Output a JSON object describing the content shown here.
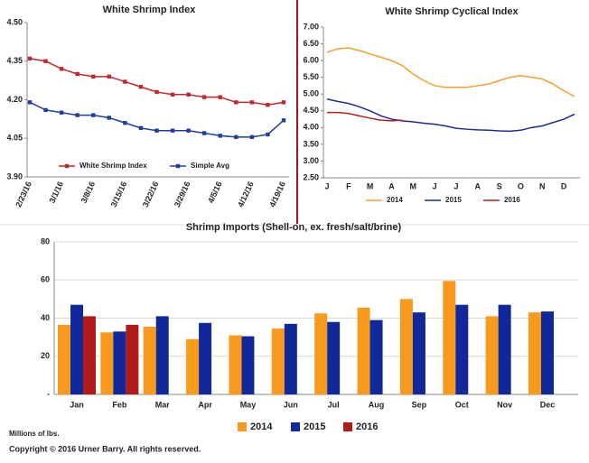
{
  "chart_data": [
    {
      "type": "line",
      "title": "White Shrimp Index",
      "categories": [
        "2/23/16",
        null,
        "3/1/16",
        null,
        "3/8/16",
        null,
        "3/15/16",
        null,
        "3/22/16",
        null,
        "3/29/16",
        null,
        "4/5/16",
        null,
        "4/12/16",
        null,
        "4/19/16"
      ],
      "series": [
        {
          "name": "White Shrimp Index",
          "color": "#c0282d",
          "marker": "square",
          "values": [
            4.36,
            4.35,
            4.32,
            4.3,
            4.29,
            4.29,
            4.27,
            4.25,
            4.23,
            4.22,
            4.22,
            4.21,
            4.21,
            4.19,
            4.19,
            4.18,
            4.19
          ]
        },
        {
          "name": "Simple Avg",
          "color": "#1f3f9a",
          "marker": "square",
          "values": [
            4.19,
            4.16,
            4.15,
            4.14,
            4.14,
            4.13,
            4.11,
            4.09,
            4.08,
            4.08,
            4.08,
            4.07,
            4.06,
            4.055,
            4.055,
            4.065,
            4.12
          ]
        }
      ],
      "ylim": [
        3.9,
        4.5
      ],
      "yticks": [
        {
          "value": 3.9,
          "label": "3.90"
        },
        4.05,
        {
          "value": 4.2,
          "label": "4.20"
        },
        4.35,
        {
          "value": 4.5,
          "label": "4.50"
        }
      ],
      "grid": false,
      "legend": "bottom"
    },
    {
      "type": "line",
      "title": "White Shrimp Cyclical Index",
      "categories": [
        "J",
        null,
        "F",
        null,
        "M",
        null,
        "A",
        null,
        "M",
        null,
        "J",
        null,
        "J",
        null,
        "A",
        null,
        "S",
        null,
        "O",
        null,
        "N",
        null,
        "D",
        null
      ],
      "series": [
        {
          "name": "2014",
          "color": "#f5a030",
          "values": [
            6.25,
            6.35,
            6.38,
            6.3,
            6.2,
            6.1,
            6.0,
            5.85,
            5.6,
            5.4,
            5.25,
            5.2,
            5.2,
            5.2,
            5.25,
            5.3,
            5.4,
            5.5,
            5.55,
            5.5,
            5.45,
            5.3,
            5.1,
            4.93
          ]
        },
        {
          "name": "2015",
          "color": "#1c2e8c",
          "values": [
            4.85,
            4.78,
            4.72,
            4.62,
            4.5,
            4.35,
            4.25,
            4.2,
            4.17,
            4.13,
            4.1,
            4.05,
            3.98,
            3.95,
            3.93,
            3.92,
            3.9,
            3.89,
            3.92,
            4.0,
            4.05,
            4.15,
            4.25,
            4.4
          ]
        },
        {
          "name": "2016",
          "color": "#b22222",
          "values": [
            4.45,
            4.45,
            4.42,
            4.35,
            4.28,
            4.22,
            4.2,
            4.22,
            null,
            null,
            null,
            null,
            null,
            null,
            null,
            null,
            null,
            null,
            null,
            null,
            null,
            null,
            null,
            null
          ]
        }
      ],
      "ylim": [
        2.5,
        7.0
      ],
      "yticks": [
        {
          "value": 2.5,
          "label": "2.50"
        },
        {
          "value": 3.0,
          "label": "3.00"
        },
        {
          "value": 3.5,
          "label": "3.50"
        },
        {
          "value": 4.0,
          "label": "4.00"
        },
        {
          "value": 4.5,
          "label": "4.50"
        },
        {
          "value": 5.0,
          "label": "5.00"
        },
        {
          "value": 5.5,
          "label": "5.50"
        },
        {
          "value": 6.0,
          "label": "6.00"
        },
        {
          "value": 6.5,
          "label": "6.50"
        },
        {
          "value": 7.0,
          "label": "7.00"
        }
      ],
      "grid": false,
      "legend": "bottom"
    },
    {
      "type": "bar",
      "title": "Shrimp Imports (Shell-on, ex. fresh/salt/brine)",
      "categories": [
        "Jan",
        "Feb",
        "Mar",
        "Apr",
        "May",
        "Jun",
        "Jul",
        "Aug",
        "Sep",
        "Oct",
        "Nov",
        "Dec"
      ],
      "series": [
        {
          "name": "2014",
          "color": "#f79a1e",
          "values": [
            36.5,
            32.5,
            35.5,
            29,
            31,
            34.5,
            42.5,
            45.5,
            50,
            59.5,
            41,
            43
          ]
        },
        {
          "name": "2015",
          "color": "#10289a",
          "values": [
            47,
            33,
            41,
            37.5,
            30.5,
            37,
            38,
            39,
            43,
            47,
            47,
            43.5
          ]
        },
        {
          "name": "2016",
          "color": "#b01c1c",
          "values": [
            41,
            36.5,
            null,
            null,
            null,
            null,
            null,
            null,
            null,
            null,
            null,
            null
          ]
        }
      ],
      "ylim": [
        0,
        80
      ],
      "yticks": [
        {
          "value": 0,
          "label": "-"
        },
        20,
        40,
        60,
        80
      ],
      "ylabel": "Millions of lbs.",
      "grid": true,
      "legend": "bottom"
    }
  ],
  "footer": "Copyright © 2016 Urner Barry. All rights reserved."
}
